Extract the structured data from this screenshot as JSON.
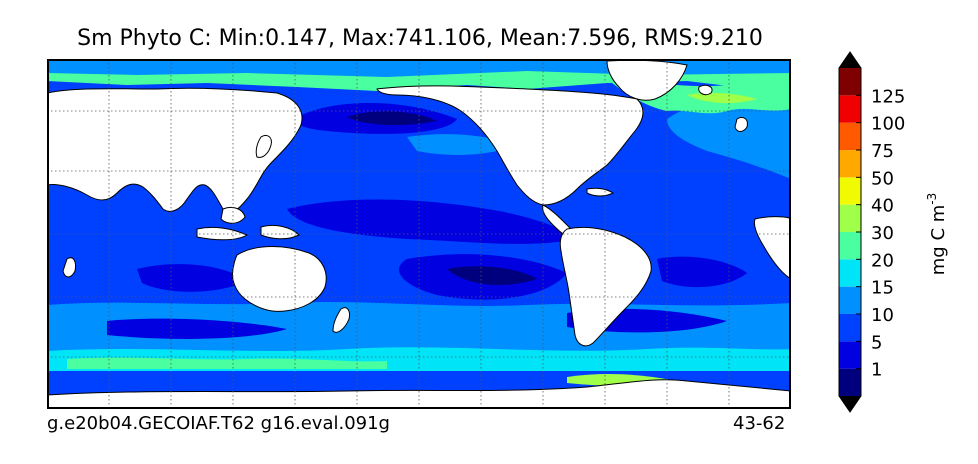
{
  "title": "Sm Phyto C: Min:0.147, Max:741.106, Mean:7.596, RMS:9.210",
  "footer": {
    "left": "g.e20b04.GECOIAF.T62 g16.eval.091g",
    "right": "43-62"
  },
  "colorbar": {
    "label": "mg C m",
    "label_superscript": "-3",
    "ticks": [
      "1",
      "5",
      "10",
      "15",
      "20",
      "30",
      "40",
      "50",
      "75",
      "100",
      "125"
    ],
    "colors": [
      "#00007f",
      "#0000e0",
      "#0040ff",
      "#0090ff",
      "#00e4f8",
      "#49ff9f",
      "#9fff49",
      "#f0fa00",
      "#ffa800",
      "#ff5a00",
      "#f00000",
      "#7f0000"
    ],
    "extend_low_color": "#000000",
    "extend_high_color": "#000000"
  },
  "map": {
    "ocean_colors": {
      "very_low": "#00007f",
      "low": "#0000e0",
      "mid": "#0040ff",
      "moderate": "#0090ff",
      "high": "#00e4f8",
      "very_high": "#49ff9f",
      "bloom": "#9fff49"
    },
    "land_color": "#ffffff",
    "gridlines": "dotted"
  }
}
